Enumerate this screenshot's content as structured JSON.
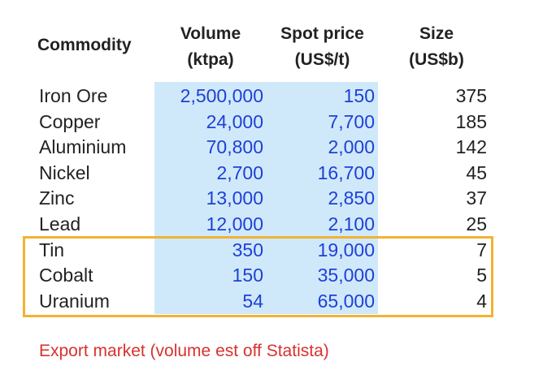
{
  "headers": {
    "commodity": "Commodity",
    "volume_line1": "Volume",
    "volume_line2": "(ktpa)",
    "price_line1": "Spot price",
    "price_line2": "(US$/t)",
    "size_line1": "Size",
    "size_line2": "(US$b)"
  },
  "rows": [
    {
      "commodity": "Iron Ore",
      "volume": "2,500,000",
      "price": "150",
      "size": "375"
    },
    {
      "commodity": "Copper",
      "volume": "24,000",
      "price": "7,700",
      "size": "185"
    },
    {
      "commodity": "Aluminium",
      "volume": "70,800",
      "price": "2,000",
      "size": "142"
    },
    {
      "commodity": "Nickel",
      "volume": "2,700",
      "price": "16,700",
      "size": "45"
    },
    {
      "commodity": "Zinc",
      "volume": "13,000",
      "price": "2,850",
      "size": "37"
    },
    {
      "commodity": "Lead",
      "volume": "12,000",
      "price": "2,100",
      "size": "25"
    },
    {
      "commodity": "Tin",
      "volume": "350",
      "price": "19,000",
      "size": "7"
    },
    {
      "commodity": "Cobalt",
      "volume": "150",
      "price": "35,000",
      "size": "5"
    },
    {
      "commodity": "Uranium",
      "volume": "54",
      "price": "65,000",
      "size": "4"
    }
  ],
  "highlighted_rows": [
    "Tin",
    "Cobalt",
    "Uranium"
  ],
  "note": "Export market (volume est off Statista)",
  "colors": {
    "input_shading": "#cfe9fb",
    "input_text": "#1f3fd8",
    "highlight_border": "#f2b233",
    "note_text": "#d8312e"
  }
}
